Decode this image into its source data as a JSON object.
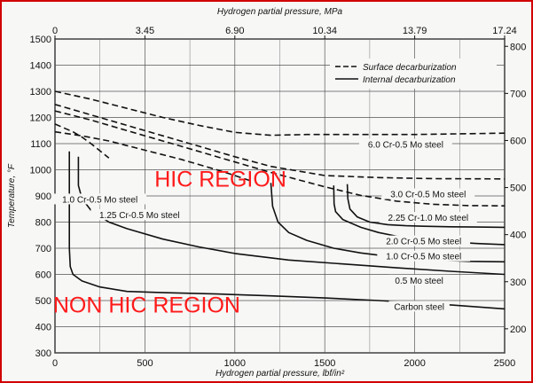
{
  "chart_data": {
    "type": "line",
    "title": "",
    "xlabel": "Hydrogen partial pressure, lbf/in²",
    "ylabel": "Temperature, °F",
    "xlim": [
      0,
      2500
    ],
    "ylim": [
      300,
      1500
    ],
    "x_ticks": [
      0,
      500,
      1000,
      1500,
      2000,
      2500
    ],
    "y_ticks": [
      300,
      400,
      500,
      600,
      700,
      800,
      900,
      1000,
      1100,
      1200,
      1300,
      1400,
      1500
    ],
    "top_axis": {
      "label": "Hydrogen partial pressure, MPa",
      "ticks": [
        "0",
        "3.45",
        "6.90",
        "10.34",
        "13.79",
        "17.24"
      ]
    },
    "right_axis": {
      "ticks": [
        {
          "label": "200",
          "at_f": 392
        },
        {
          "label": "300",
          "at_f": 572
        },
        {
          "label": "400",
          "at_f": 752
        },
        {
          "label": "500",
          "at_f": 932
        },
        {
          "label": "600",
          "at_f": 1112
        },
        {
          "label": "700",
          "at_f": 1292
        },
        {
          "label": "800",
          "at_f": 1472
        }
      ]
    },
    "grid": true,
    "legend": {
      "position": "top-right",
      "entries": [
        {
          "label": "Surface decarburization",
          "style": "dashed"
        },
        {
          "label": "Internal decarburization",
          "style": "solid"
        }
      ]
    },
    "series": [
      {
        "name": "6.0 Cr-0.5 Mo steel",
        "style": "dashed",
        "x": [
          0,
          200,
          400,
          600,
          800,
          1000,
          1200,
          1400,
          1700,
          2000,
          2300,
          2500
        ],
        "y": [
          1300,
          1270,
          1235,
          1200,
          1170,
          1143,
          1132,
          1135,
          1135,
          1135,
          1138,
          1140
        ]
      },
      {
        "name": "3.0 Cr-0.5 Mo steel",
        "style": "dashed",
        "x": [
          0,
          200,
          400,
          600,
          800,
          1000,
          1200,
          1500,
          1800,
          2100,
          2500
        ],
        "y": [
          1250,
          1210,
          1170,
          1130,
          1090,
          1050,
          1013,
          978,
          970,
          966,
          965
        ]
      },
      {
        "name": "2.25 Cr-1.0 Mo steel",
        "style": "dashed",
        "x": [
          0,
          200,
          400,
          700,
          1000,
          1200,
          1500,
          1700,
          1900,
          2100,
          2300,
          2500
        ],
        "y": [
          1225,
          1190,
          1150,
          1090,
          1030,
          990,
          935,
          902,
          880,
          868,
          863,
          862
        ]
      },
      {
        "name": "1.0 Cr-0.5 Mo steel",
        "style": "dashed",
        "x": [
          0,
          50,
          100,
          150,
          200,
          300
        ],
        "y": [
          1175,
          1160,
          1145,
          1125,
          1100,
          1045
        ]
      },
      {
        "name": "1.25 Cr-0.5 Mo steel",
        "style": "dashed",
        "x": [
          0,
          150,
          300,
          500,
          700,
          900,
          1000,
          1100
        ],
        "y": [
          1145,
          1130,
          1110,
          1075,
          1040,
          1000,
          978,
          955
        ]
      },
      {
        "name": "Carbon steel",
        "style": "solid",
        "x": [
          80,
          80,
          85,
          100,
          150,
          250,
          400,
          600,
          900,
          1200,
          1500,
          1800,
          2100,
          2500
        ],
        "y": [
          1070,
          700,
          630,
          600,
          575,
          552,
          535,
          530,
          525,
          518,
          510,
          500,
          488,
          468
        ]
      },
      {
        "name": "0.5 Mo steel",
        "style": "solid",
        "x": [
          130,
          130,
          150,
          200,
          300,
          400,
          600,
          800,
          1000,
          1300,
          1600,
          1900,
          2200,
          2500
        ],
        "y": [
          1050,
          940,
          890,
          845,
          800,
          775,
          735,
          705,
          680,
          655,
          640,
          625,
          612,
          600
        ]
      },
      {
        "name": "1.0 Cr-0.5 Mo steel",
        "style": "solid",
        "x": [
          1200,
          1210,
          1240,
          1300,
          1400,
          1550,
          1700,
          1900,
          2100,
          2300,
          2500
        ],
        "y": [
          950,
          860,
          800,
          760,
          730,
          700,
          682,
          665,
          656,
          650,
          648
        ]
      },
      {
        "name": "2.0 Cr-0.5 Mo steel",
        "style": "solid",
        "x": [
          1550,
          1552,
          1560,
          1600,
          1700,
          1800,
          1900,
          2000,
          2200,
          2350,
          2500
        ],
        "y": [
          940,
          870,
          840,
          810,
          780,
          760,
          746,
          736,
          724,
          718,
          714
        ]
      },
      {
        "name": "2.25 Cr-1.0 Mo steel",
        "style": "solid",
        "x": [
          1625,
          1628,
          1640,
          1680,
          1750,
          1850,
          1950,
          2050,
          2200,
          2350,
          2500
        ],
        "y": [
          945,
          890,
          850,
          820,
          800,
          790,
          786,
          784,
          782,
          781,
          780
        ]
      }
    ],
    "curve_labels": [
      {
        "text": "6.0 Cr-0.5 Mo steel",
        "x": 1950,
        "y": 1095
      },
      {
        "text": "3.0 Cr-0.5 Mo steel",
        "x": 2075,
        "y": 905
      },
      {
        "text": "2.25 Cr-1.0 Mo steel",
        "x": 2075,
        "y": 815
      },
      {
        "text": "1.0 Cr-0.5 Mo steel",
        "x": 250,
        "y": 885
      },
      {
        "text": "1.25 Cr-0.5 Mo steel",
        "x": 470,
        "y": 825
      },
      {
        "text": "2.0 Cr-0.5 Mo steel",
        "x": 2050,
        "y": 725
      },
      {
        "text": "1.0 Cr-0.5 Mo steel",
        "x": 2050,
        "y": 667
      },
      {
        "text": "0.5 Mo steel",
        "x": 2025,
        "y": 575
      },
      {
        "text": "Carbon steel",
        "x": 2025,
        "y": 475
      }
    ],
    "annotations": [
      {
        "text": "HIC REGION",
        "x": 920,
        "y": 935
      },
      {
        "text": "NON HIC REGION",
        "x": 510,
        "y": 455
      }
    ]
  },
  "colors": {
    "border": "#d10000",
    "region_text": "#ff1a1a",
    "ink": "#111111",
    "background": "#f7f7f6"
  }
}
